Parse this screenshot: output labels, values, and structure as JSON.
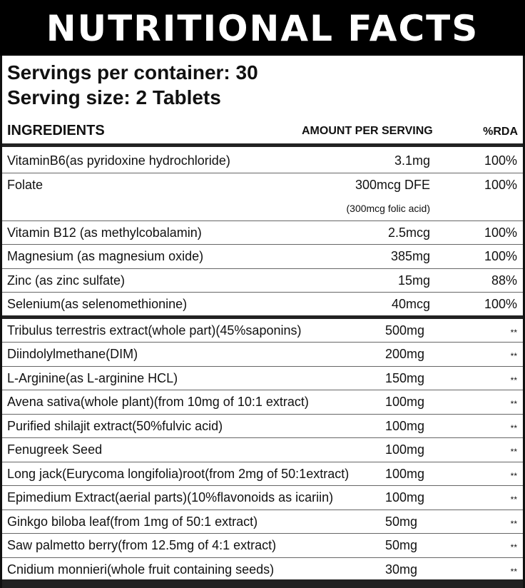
{
  "title": "NUTRITIONAL FACTS",
  "servings_per_container": "Servings per container: 30",
  "serving_size": "Serving size: 2 Tablets",
  "headers": {
    "ingredients": "INGREDIENTS",
    "amount": "AMOUNT PER SERVING",
    "rda": "%RDA"
  },
  "vitamins": [
    {
      "name": "VitaminB6(as pyridoxine hydrochloride)",
      "amount": "3.1mg",
      "rda": "100%"
    },
    {
      "name": "Folate",
      "amount": "300mcg DFE",
      "note": "(300mcg folic acid)",
      "rda": "100%"
    },
    {
      "name": "Vitamin B12 (as methylcobalamin)",
      "amount": "2.5mcg",
      "rda": "100%"
    },
    {
      "name": "Magnesium (as magnesium oxide)",
      "amount": "385mg",
      "rda": "100%"
    },
    {
      "name": "Zinc (as zinc sulfate)",
      "amount": "15mg",
      "rda": "88%"
    },
    {
      "name": "Selenium(as selenomethionine)",
      "amount": "40mcg",
      "rda": "100%"
    }
  ],
  "herbals": [
    {
      "name": "Tribulus terrestris extract(whole part)(45%saponins)",
      "amount": "500mg",
      "rda": "**"
    },
    {
      "name": "Diindolylmethane(DIM)",
      "amount": "200mg",
      "rda": "**"
    },
    {
      "name": "L-Arginine(as L-arginine HCL)",
      "amount": "150mg",
      "rda": "**"
    },
    {
      "name": "Avena sativa(whole plant)(from 10mg of 10:1 extract)",
      "amount": "100mg",
      "rda": "**"
    },
    {
      "name": "Purified shilajit extract(50%fulvic acid)",
      "amount": "100mg",
      "rda": "**"
    },
    {
      "name": "Fenugreek Seed",
      "amount": "100mg",
      "rda": "**"
    },
    {
      "name": "Long jack(Eurycoma longifolia)root(from 2mg of 50:1extract)",
      "amount": "100mg",
      "rda": "**"
    },
    {
      "name": "Epimedium Extract(aerial parts)(10%flavonoids as icariin)",
      "amount": "100mg",
      "rda": "**"
    },
    {
      "name": "Ginkgo biloba leaf(from 1mg of 50:1 extract)",
      "amount": "50mg",
      "rda": "**"
    },
    {
      "name": "Saw palmetto berry(from 12.5mg of 4:1 extract)",
      "amount": "50mg",
      "rda": "**"
    },
    {
      "name": "Cnidium monnieri(whole fruit containing seeds)",
      "amount": "30mg",
      "rda": "**"
    }
  ]
}
